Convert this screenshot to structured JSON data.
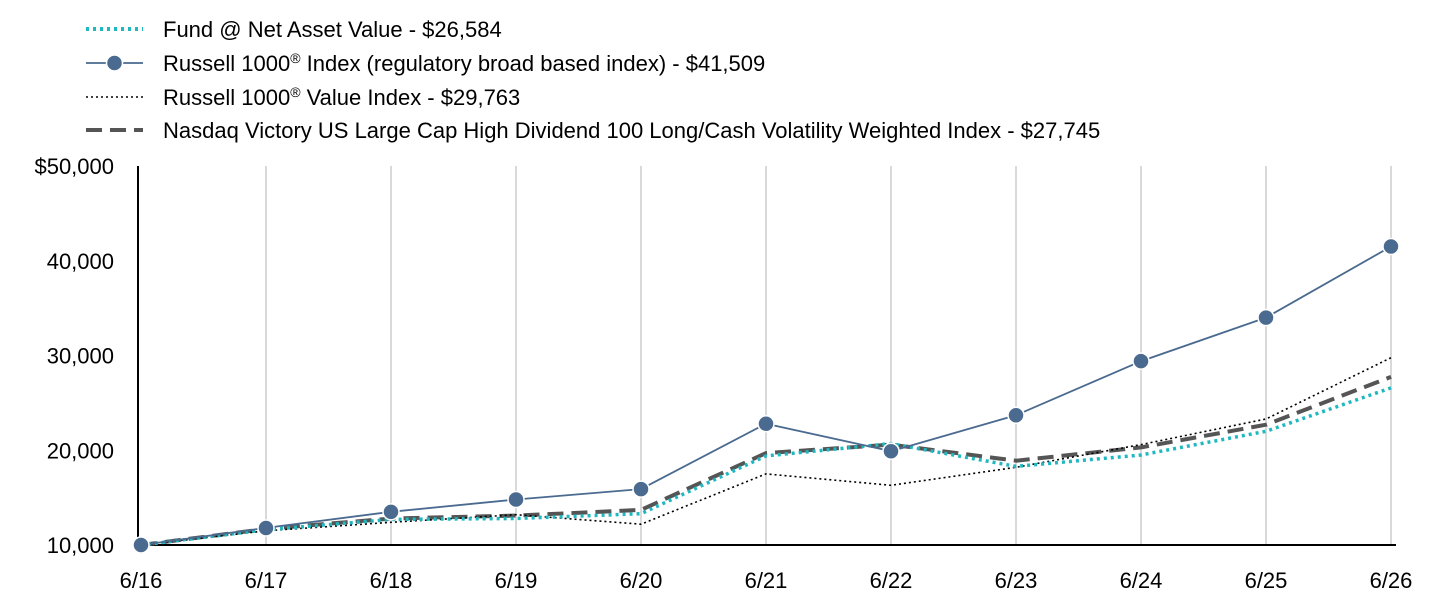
{
  "chart_data": {
    "type": "line",
    "title": "",
    "xlabel": "",
    "ylabel": "",
    "categories": [
      "6/16",
      "6/17",
      "6/18",
      "6/19",
      "6/20",
      "6/21",
      "6/22",
      "6/23",
      "6/24",
      "6/25",
      "6/26"
    ],
    "ylim": [
      10000,
      50000
    ],
    "y_ticks": [
      "$50,000",
      "40,000",
      "30,000",
      "20,000",
      "10,000"
    ],
    "y_tick_values": [
      50000,
      40000,
      30000,
      20000,
      10000
    ],
    "grid": "vertical",
    "legend_position": "top-left",
    "series": [
      {
        "name": "Fund @ Net Asset Value - $26,584",
        "color": "#20b8c0",
        "style": "dotted",
        "values": [
          10000,
          11600,
          12700,
          12800,
          13300,
          19400,
          20700,
          18300,
          19500,
          22000,
          26584
        ]
      },
      {
        "name": "Russell 1000® Index (regulatory broad based index) - $41,509",
        "name_parts": [
          "Russell 1000",
          "®",
          " Index (regulatory broad based index) - $41,509"
        ],
        "color": "#4a6a8f",
        "style": "solid-marker",
        "values": [
          10000,
          11800,
          13500,
          14800,
          15900,
          22800,
          19900,
          23700,
          29400,
          34000,
          41509
        ]
      },
      {
        "name": "Russell 1000® Value Index - $29,763",
        "name_parts": [
          "Russell 1000",
          "®",
          " Value Index - $29,763"
        ],
        "color": "#000000",
        "style": "fine-dotted",
        "values": [
          10000,
          11500,
          12400,
          13200,
          12200,
          17500,
          16300,
          18200,
          20600,
          23300,
          29763
        ]
      },
      {
        "name": "Nasdaq Victory US Large Cap High Dividend 100 Long/Cash Volatility Weighted Index - $27,745",
        "color": "#555555",
        "style": "dashed",
        "values": [
          10000,
          11700,
          12800,
          13100,
          13700,
          19700,
          20600,
          18900,
          20300,
          22700,
          27745
        ]
      }
    ]
  }
}
